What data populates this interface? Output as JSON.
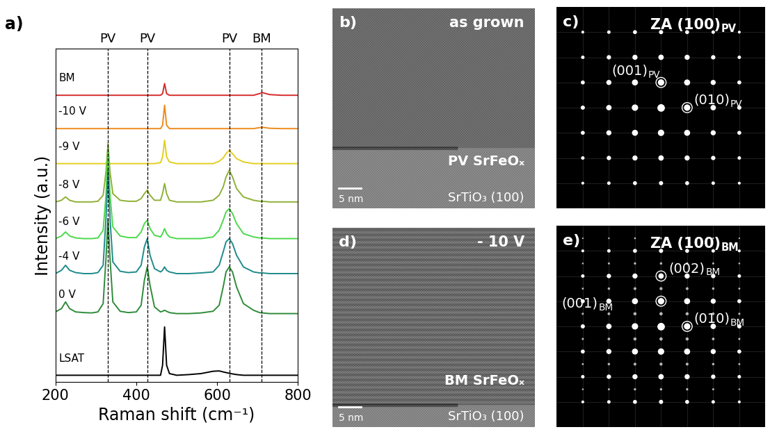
{
  "chart_data": {
    "type": "line",
    "panel_label": "a)",
    "x_label": "Raman shift (cm⁻¹)",
    "y_label": "Intensity (a.u.)",
    "xlim": [
      200,
      800
    ],
    "xticks": [
      200,
      400,
      600,
      800
    ],
    "ylim": [
      0,
      10
    ],
    "tick_labels": "x",
    "x": [
      200,
      215,
      225,
      235,
      250,
      270,
      290,
      305,
      318,
      325,
      330,
      335,
      342,
      360,
      380,
      400,
      412,
      420,
      427,
      434,
      445,
      460,
      465,
      470,
      475,
      482,
      500,
      530,
      560,
      590,
      605,
      615,
      622,
      630,
      638,
      648,
      665,
      690,
      705,
      712,
      730,
      760,
      800
    ],
    "reference_lines": [
      {
        "x": 330,
        "label": "PV",
        "line_style": "dashed"
      },
      {
        "x": 427,
        "label": "PV",
        "line_style": "dashed"
      },
      {
        "x": 630,
        "label": "PV",
        "line_style": "dashed"
      },
      {
        "x": 710,
        "label": "BM",
        "line_style": "dashed"
      }
    ],
    "series": [
      {
        "name": "BM",
        "color": "#d62a2a",
        "values": [
          8.6,
          8.6,
          8.6,
          8.6,
          8.6,
          8.6,
          8.6,
          8.6,
          8.6,
          8.6,
          8.6,
          8.6,
          8.6,
          8.6,
          8.6,
          8.6,
          8.6,
          8.6,
          8.6,
          8.6,
          8.6,
          8.6,
          8.65,
          8.95,
          8.65,
          8.6,
          8.6,
          8.6,
          8.6,
          8.6,
          8.6,
          8.6,
          8.6,
          8.6,
          8.6,
          8.6,
          8.6,
          8.6,
          8.65,
          8.68,
          8.62,
          8.6,
          8.6
        ]
      },
      {
        "name": "-10 V",
        "color": "#f08a1c",
        "values": [
          7.6,
          7.6,
          7.6,
          7.6,
          7.6,
          7.6,
          7.6,
          7.6,
          7.6,
          7.6,
          7.6,
          7.6,
          7.6,
          7.6,
          7.6,
          7.6,
          7.6,
          7.6,
          7.6,
          7.6,
          7.6,
          7.6,
          7.7,
          8.3,
          7.7,
          7.6,
          7.6,
          7.6,
          7.6,
          7.6,
          7.6,
          7.6,
          7.6,
          7.6,
          7.6,
          7.6,
          7.6,
          7.6,
          7.63,
          7.64,
          7.61,
          7.6,
          7.6
        ]
      },
      {
        "name": "-9 V",
        "color": "#e2cf1e",
        "values": [
          6.55,
          6.55,
          6.55,
          6.55,
          6.55,
          6.55,
          6.55,
          6.55,
          6.55,
          6.55,
          6.55,
          6.55,
          6.55,
          6.55,
          6.55,
          6.55,
          6.55,
          6.55,
          6.55,
          6.55,
          6.55,
          6.58,
          6.75,
          7.25,
          6.75,
          6.6,
          6.55,
          6.55,
          6.55,
          6.55,
          6.62,
          6.72,
          6.85,
          6.95,
          6.85,
          6.7,
          6.6,
          6.55,
          6.55,
          6.55,
          6.55,
          6.55,
          6.55
        ]
      },
      {
        "name": "-8 V",
        "color": "#8fb035",
        "values": [
          5.4,
          5.45,
          5.55,
          5.45,
          5.4,
          5.4,
          5.4,
          5.42,
          5.6,
          6.3,
          7.15,
          6.3,
          5.65,
          5.45,
          5.42,
          5.42,
          5.5,
          5.65,
          5.75,
          5.6,
          5.45,
          5.45,
          5.65,
          5.95,
          5.65,
          5.45,
          5.4,
          5.4,
          5.4,
          5.45,
          5.6,
          5.85,
          6.15,
          6.35,
          6.15,
          5.8,
          5.55,
          5.45,
          5.42,
          5.42,
          5.4,
          5.4,
          5.4
        ]
      },
      {
        "name": "-6 V",
        "color": "#4cd94c",
        "values": [
          4.3,
          4.38,
          4.5,
          4.38,
          4.32,
          4.3,
          4.3,
          4.32,
          4.55,
          5.6,
          7.0,
          5.6,
          4.65,
          4.38,
          4.33,
          4.33,
          4.5,
          4.75,
          4.85,
          4.6,
          4.4,
          4.35,
          4.45,
          4.6,
          4.45,
          4.35,
          4.3,
          4.3,
          4.3,
          4.35,
          4.55,
          4.85,
          5.1,
          5.2,
          5.05,
          4.75,
          4.45,
          4.35,
          4.32,
          4.32,
          4.3,
          4.3,
          4.3
        ]
      },
      {
        "name": "-4 V",
        "color": "#1f8a8a",
        "values": [
          3.25,
          3.35,
          3.5,
          3.35,
          3.28,
          3.25,
          3.25,
          3.28,
          3.5,
          4.9,
          6.35,
          4.9,
          3.6,
          3.32,
          3.28,
          3.3,
          3.5,
          4.05,
          4.3,
          3.8,
          3.4,
          3.3,
          3.35,
          3.45,
          3.35,
          3.3,
          3.25,
          3.25,
          3.27,
          3.3,
          3.5,
          3.9,
          4.2,
          4.3,
          4.15,
          3.8,
          3.45,
          3.3,
          3.27,
          3.27,
          3.25,
          3.25,
          3.25
        ]
      },
      {
        "name": "0 V",
        "color": "#2e8b3a",
        "values": [
          2.1,
          2.2,
          2.4,
          2.2,
          2.1,
          2.08,
          2.07,
          2.1,
          2.35,
          3.7,
          4.9,
          3.7,
          2.4,
          2.12,
          2.08,
          2.1,
          2.3,
          3.05,
          3.45,
          2.9,
          2.25,
          2.1,
          2.12,
          2.15,
          2.12,
          2.08,
          2.05,
          2.05,
          2.07,
          2.12,
          2.3,
          2.85,
          3.3,
          3.45,
          3.3,
          2.85,
          2.35,
          2.15,
          2.08,
          2.07,
          2.05,
          2.05,
          2.05
        ]
      },
      {
        "name": "LSAT",
        "color": "#000000",
        "values": [
          0.2,
          0.2,
          0.2,
          0.2,
          0.2,
          0.2,
          0.2,
          0.2,
          0.2,
          0.2,
          0.2,
          0.2,
          0.2,
          0.2,
          0.2,
          0.2,
          0.2,
          0.2,
          0.2,
          0.2,
          0.2,
          0.2,
          0.5,
          1.65,
          0.5,
          0.25,
          0.2,
          0.22,
          0.25,
          0.32,
          0.33,
          0.3,
          0.28,
          0.26,
          0.24,
          0.22,
          0.2,
          0.2,
          0.2,
          0.2,
          0.2,
          0.2,
          0.2
        ]
      }
    ]
  },
  "panels": [
    {
      "label": "b)",
      "type": "tem_image",
      "condition": "as grown",
      "film": "PV SrFeOₓ",
      "substrate": "SrTiO₃ (100)",
      "scale_bar": "5 nm"
    },
    {
      "label": "c)",
      "type": "diffraction",
      "zone_axis": {
        "text": "ZA (100)",
        "sub": "PV"
      },
      "spots": [
        {
          "text": "(001)",
          "sub": "PV"
        },
        {
          "text": "(010)",
          "sub": "PV"
        }
      ]
    },
    {
      "label": "d)",
      "type": "tem_image",
      "condition": "- 10 V",
      "film": "BM SrFeOₓ",
      "substrate": "SrTiO₃ (100)",
      "scale_bar": "5 nm"
    },
    {
      "label": "e)",
      "type": "diffraction",
      "zone_axis": {
        "text": "ZA (100)",
        "sub": "BM"
      },
      "spots": [
        {
          "text": "(002)",
          "sub": "BM"
        },
        {
          "text": "(001)",
          "sub": "BM"
        },
        {
          "text": "(010)",
          "sub": "BM"
        }
      ]
    }
  ]
}
